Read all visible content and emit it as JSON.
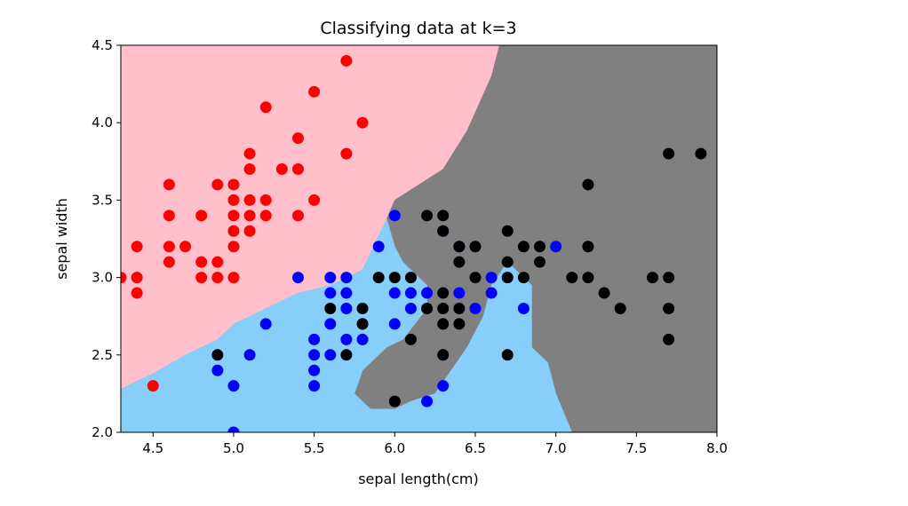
{
  "chart_data": {
    "type": "scatter",
    "title": "Classifying data at k=3",
    "xlabel": "sepal length(cm)",
    "ylabel": "sepal width",
    "xlim": [
      4.3,
      8.0
    ],
    "ylim": [
      2.0,
      4.5
    ],
    "xticks": [
      "4.5",
      "5.0",
      "5.5",
      "6.0",
      "6.5",
      "7.0",
      "7.5",
      "8.0"
    ],
    "yticks": [
      "2.0",
      "2.5",
      "3.0",
      "3.5",
      "4.0",
      "4.5"
    ],
    "grid": false,
    "legend": "none",
    "region_colors": [
      "#ffc0cb",
      "#87cefa",
      "#808080"
    ],
    "decision_regions": [
      {
        "class": 0,
        "color": "#ffc0cb",
        "polygon": [
          [
            4.3,
            2.28
          ],
          [
            4.5,
            2.38
          ],
          [
            4.7,
            2.5
          ],
          [
            4.9,
            2.6
          ],
          [
            5.0,
            2.7
          ],
          [
            5.2,
            2.8
          ],
          [
            5.4,
            2.9
          ],
          [
            5.6,
            2.95
          ],
          [
            5.8,
            3.05
          ],
          [
            5.95,
            3.3
          ],
          [
            6.0,
            3.45
          ],
          [
            6.3,
            3.7
          ],
          [
            6.45,
            3.95
          ],
          [
            6.6,
            4.3
          ],
          [
            6.65,
            4.5
          ],
          [
            4.3,
            4.5
          ]
        ]
      },
      {
        "class": 2,
        "color": "#808080",
        "polygon": [
          [
            6.65,
            4.5
          ],
          [
            8.0,
            4.5
          ],
          [
            8.0,
            2.0
          ],
          [
            7.1,
            2.0
          ],
          [
            7.0,
            2.25
          ],
          [
            6.95,
            2.45
          ],
          [
            6.85,
            2.55
          ],
          [
            6.85,
            2.95
          ],
          [
            6.7,
            3.1
          ],
          [
            6.6,
            2.95
          ],
          [
            6.55,
            2.75
          ],
          [
            6.45,
            2.55
          ],
          [
            6.35,
            2.4
          ],
          [
            6.25,
            2.25
          ],
          [
            6.1,
            2.2
          ],
          [
            6.0,
            2.15
          ],
          [
            5.85,
            2.15
          ],
          [
            5.75,
            2.25
          ],
          [
            5.8,
            2.4
          ],
          [
            5.85,
            2.45
          ],
          [
            5.95,
            2.55
          ],
          [
            6.05,
            2.6
          ],
          [
            6.2,
            2.8
          ],
          [
            6.2,
            2.95
          ],
          [
            6.05,
            3.1
          ],
          [
            6.0,
            3.2
          ],
          [
            5.95,
            3.38
          ],
          [
            6.0,
            3.5
          ],
          [
            6.3,
            3.7
          ],
          [
            6.45,
            3.95
          ],
          [
            6.6,
            4.3
          ]
        ]
      },
      {
        "class": 1,
        "color": "#87cefa",
        "polygon": [
          [
            4.3,
            2.0
          ],
          [
            7.1,
            2.0
          ],
          [
            7.0,
            2.25
          ],
          [
            6.95,
            2.45
          ],
          [
            6.85,
            2.55
          ],
          [
            6.85,
            2.95
          ],
          [
            6.7,
            3.1
          ],
          [
            6.6,
            2.95
          ],
          [
            6.55,
            2.75
          ],
          [
            6.45,
            2.55
          ],
          [
            6.35,
            2.4
          ],
          [
            6.25,
            2.25
          ],
          [
            6.1,
            2.2
          ],
          [
            6.0,
            2.15
          ],
          [
            5.85,
            2.15
          ],
          [
            5.75,
            2.25
          ],
          [
            5.8,
            2.4
          ],
          [
            5.85,
            2.45
          ],
          [
            5.95,
            2.55
          ],
          [
            6.05,
            2.6
          ],
          [
            6.2,
            2.8
          ],
          [
            6.2,
            2.95
          ],
          [
            6.05,
            3.1
          ],
          [
            6.0,
            3.2
          ],
          [
            5.95,
            3.38
          ],
          [
            5.8,
            3.05
          ],
          [
            5.6,
            2.95
          ],
          [
            5.4,
            2.9
          ],
          [
            5.2,
            2.8
          ],
          [
            5.0,
            2.7
          ],
          [
            4.9,
            2.6
          ],
          [
            4.7,
            2.5
          ],
          [
            4.5,
            2.38
          ],
          [
            4.3,
            2.28
          ]
        ]
      }
    ],
    "series": [
      {
        "color": "#ff0000",
        "points": [
          [
            5.7,
            4.4
          ],
          [
            5.5,
            4.2
          ],
          [
            5.2,
            4.1
          ],
          [
            5.8,
            4.0
          ],
          [
            5.4,
            3.9
          ],
          [
            5.1,
            3.8
          ],
          [
            5.7,
            3.8
          ],
          [
            5.1,
            3.7
          ],
          [
            5.3,
            3.7
          ],
          [
            5.4,
            3.7
          ],
          [
            4.6,
            3.6
          ],
          [
            4.9,
            3.6
          ],
          [
            5.0,
            3.6
          ],
          [
            5.0,
            3.5
          ],
          [
            5.1,
            3.5
          ],
          [
            5.2,
            3.5
          ],
          [
            5.5,
            3.5
          ],
          [
            4.6,
            3.4
          ],
          [
            4.8,
            3.4
          ],
          [
            5.0,
            3.4
          ],
          [
            5.1,
            3.4
          ],
          [
            5.2,
            3.4
          ],
          [
            5.4,
            3.4
          ],
          [
            5.0,
            3.3
          ],
          [
            5.1,
            3.3
          ],
          [
            4.4,
            3.2
          ],
          [
            4.6,
            3.2
          ],
          [
            4.7,
            3.2
          ],
          [
            5.0,
            3.2
          ],
          [
            4.6,
            3.1
          ],
          [
            4.8,
            3.1
          ],
          [
            4.9,
            3.1
          ],
          [
            4.3,
            3.0
          ],
          [
            4.4,
            3.0
          ],
          [
            4.8,
            3.0
          ],
          [
            4.9,
            3.0
          ],
          [
            5.0,
            3.0
          ],
          [
            4.4,
            2.9
          ],
          [
            4.5,
            2.3
          ]
        ]
      },
      {
        "color": "#0000ff",
        "points": [
          [
            6.0,
            3.4
          ],
          [
            6.3,
            3.3
          ],
          [
            5.9,
            3.2
          ],
          [
            7.0,
            3.2
          ],
          [
            6.4,
            3.2
          ],
          [
            5.4,
            3.0
          ],
          [
            5.6,
            3.0
          ],
          [
            5.7,
            3.0
          ],
          [
            6.6,
            3.0
          ],
          [
            5.6,
            2.9
          ],
          [
            5.7,
            2.9
          ],
          [
            6.0,
            2.9
          ],
          [
            6.1,
            2.9
          ],
          [
            6.2,
            2.9
          ],
          [
            6.4,
            2.9
          ],
          [
            6.6,
            2.9
          ],
          [
            5.7,
            2.8
          ],
          [
            6.1,
            2.8
          ],
          [
            6.5,
            2.8
          ],
          [
            6.8,
            2.8
          ],
          [
            5.2,
            2.7
          ],
          [
            5.6,
            2.7
          ],
          [
            5.8,
            2.7
          ],
          [
            6.0,
            2.7
          ],
          [
            5.5,
            2.6
          ],
          [
            5.7,
            2.6
          ],
          [
            5.8,
            2.6
          ],
          [
            5.5,
            2.5
          ],
          [
            5.6,
            2.5
          ],
          [
            6.3,
            2.5
          ],
          [
            5.1,
            2.5
          ],
          [
            5.5,
            2.4
          ],
          [
            4.9,
            2.4
          ],
          [
            5.0,
            2.3
          ],
          [
            5.5,
            2.3
          ],
          [
            6.3,
            2.3
          ],
          [
            6.2,
            2.2
          ],
          [
            5.0,
            2.0
          ]
        ]
      },
      {
        "color": "#000000",
        "points": [
          [
            7.7,
            3.8
          ],
          [
            7.9,
            3.8
          ],
          [
            7.2,
            3.6
          ],
          [
            6.2,
            3.4
          ],
          [
            6.3,
            3.4
          ],
          [
            6.3,
            3.3
          ],
          [
            6.7,
            3.3
          ],
          [
            6.4,
            3.2
          ],
          [
            6.5,
            3.2
          ],
          [
            6.8,
            3.2
          ],
          [
            6.9,
            3.2
          ],
          [
            7.2,
            3.2
          ],
          [
            6.4,
            3.1
          ],
          [
            6.7,
            3.1
          ],
          [
            6.9,
            3.1
          ],
          [
            5.9,
            3.0
          ],
          [
            6.0,
            3.0
          ],
          [
            6.1,
            3.0
          ],
          [
            6.5,
            3.0
          ],
          [
            6.7,
            3.0
          ],
          [
            6.8,
            3.0
          ],
          [
            7.1,
            3.0
          ],
          [
            7.2,
            3.0
          ],
          [
            7.6,
            3.0
          ],
          [
            7.7,
            3.0
          ],
          [
            6.3,
            2.9
          ],
          [
            7.3,
            2.9
          ],
          [
            5.6,
            2.8
          ],
          [
            5.8,
            2.8
          ],
          [
            6.2,
            2.8
          ],
          [
            6.3,
            2.8
          ],
          [
            6.4,
            2.8
          ],
          [
            7.4,
            2.8
          ],
          [
            7.7,
            2.8
          ],
          [
            5.8,
            2.7
          ],
          [
            6.3,
            2.7
          ],
          [
            6.4,
            2.7
          ],
          [
            6.1,
            2.6
          ],
          [
            7.7,
            2.6
          ],
          [
            4.9,
            2.5
          ],
          [
            5.7,
            2.5
          ],
          [
            6.3,
            2.5
          ],
          [
            6.7,
            2.5
          ],
          [
            6.0,
            2.2
          ]
        ]
      }
    ]
  }
}
